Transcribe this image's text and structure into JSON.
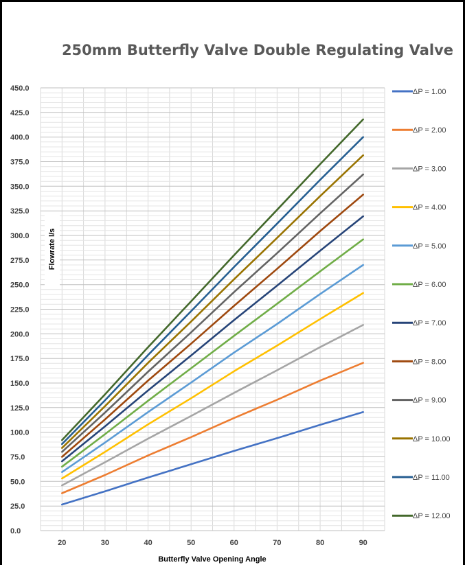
{
  "chart_data": {
    "type": "line",
    "title": "250mm Butterfly Valve Double Regulating Valve",
    "xlabel": "Butterfly Valve Opening Angle",
    "ylabel": "Flowrate l/s",
    "x": [
      20,
      30,
      40,
      50,
      60,
      70,
      80,
      90
    ],
    "x_ticks": [
      "20",
      "30",
      "40",
      "50",
      "60",
      "70",
      "80",
      "90"
    ],
    "xlim": [
      15,
      95
    ],
    "ylim": [
      0,
      450
    ],
    "y_ticks": [
      "0.0",
      "25.0",
      "50.0",
      "75.0",
      "100.0",
      "125.0",
      "150.0",
      "175.0",
      "200.0",
      "225.0",
      "250.0",
      "275.0",
      "300.0",
      "325.0",
      "350.0",
      "375.0",
      "400.0",
      "425.0",
      "450.0"
    ],
    "grid": true,
    "legend_position": "right",
    "series": [
      {
        "name": "ΔP = 1.00",
        "color": "#4472C4",
        "values": [
          26.5,
          40.0,
          54.0,
          67.5,
          81.0,
          94.0,
          107.5,
          120.5
        ]
      },
      {
        "name": "ΔP = 2.00",
        "color": "#ED7D31",
        "values": [
          38.0,
          56.5,
          76.5,
          95.0,
          114.5,
          133.0,
          152.5,
          170.5
        ]
      },
      {
        "name": "ΔP = 3.00",
        "color": "#A5A5A5",
        "values": [
          46.0,
          69.5,
          93.5,
          116.5,
          140.0,
          163.0,
          186.5,
          209.0
        ]
      },
      {
        "name": "ΔP = 4.00",
        "color": "#FFC000",
        "values": [
          53.0,
          80.0,
          108.0,
          134.5,
          162.0,
          188.0,
          215.0,
          241.5
        ]
      },
      {
        "name": "ΔP = 5.00",
        "color": "#5B9BD5",
        "values": [
          59.5,
          89.5,
          120.5,
          150.5,
          181.0,
          210.0,
          240.5,
          270.0
        ]
      },
      {
        "name": "ΔP = 6.00",
        "color": "#70AD47",
        "values": [
          65.0,
          98.0,
          132.0,
          165.0,
          198.0,
          230.5,
          263.5,
          296.0
        ]
      },
      {
        "name": "ΔP = 7.00",
        "color": "#264478",
        "values": [
          70.5,
          106.0,
          142.5,
          178.0,
          214.0,
          249.0,
          284.5,
          319.5
        ]
      },
      {
        "name": "ΔP = 8.00",
        "color": "#9E480E",
        "values": [
          75.0,
          113.0,
          152.5,
          190.0,
          228.5,
          266.0,
          304.5,
          341.5
        ]
      },
      {
        "name": "ΔP = 9.00",
        "color": "#636363",
        "values": [
          80.0,
          120.0,
          161.5,
          201.5,
          242.5,
          282.0,
          322.5,
          362.0
        ]
      },
      {
        "name": "ΔP = 10.00",
        "color": "#997300",
        "values": [
          84.0,
          126.5,
          170.5,
          212.5,
          255.5,
          297.5,
          340.0,
          381.5
        ]
      },
      {
        "name": "ΔP = 11.00",
        "color": "#255E91",
        "values": [
          88.0,
          132.5,
          178.5,
          223.0,
          268.0,
          312.0,
          356.5,
          400.0
        ]
      },
      {
        "name": "ΔP = 12.00",
        "color": "#43682B",
        "values": [
          92.0,
          138.5,
          186.5,
          233.0,
          280.0,
          326.0,
          372.5,
          418.0
        ]
      }
    ]
  }
}
